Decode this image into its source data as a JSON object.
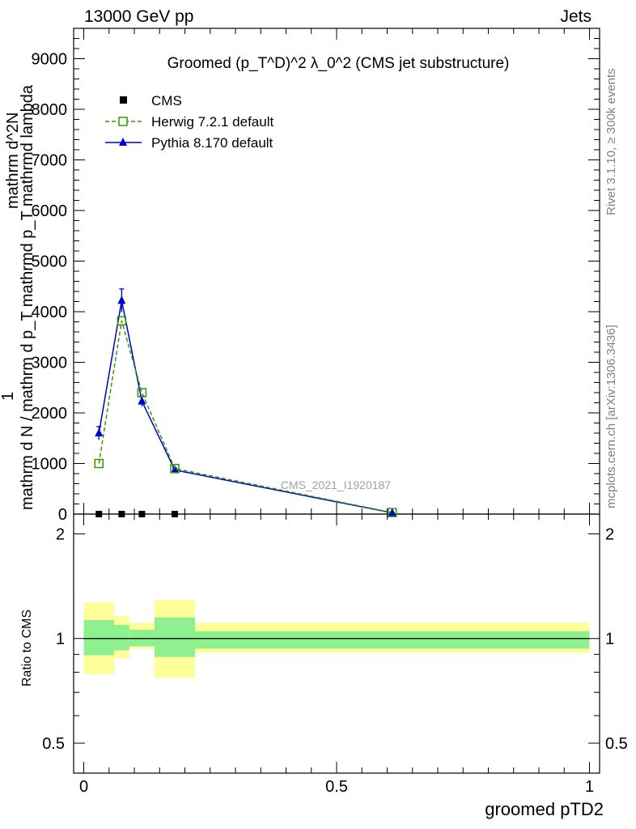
{
  "header": {
    "left": "13000 GeV pp",
    "right": "Jets"
  },
  "side_text": {
    "rivet": "Rivet 3.1.10, ≥ 300k events",
    "mcplots": "mcplots.cern.ch [arXiv:1306.3436]"
  },
  "watermark": "CMS_2021_I1920187",
  "xlabel": "groomed pTD2",
  "colors": {
    "herwig": "#339900",
    "pythia": "#0000cc",
    "band_inner": "#8ff08f",
    "band_outer": "#ffff99",
    "side_text": "#808080"
  },
  "chart_data": [
    {
      "type": "line",
      "title": "Groomed (p_T^D)^2 λ_0^2 (CMS jet substructure)",
      "ylabel_numerator": "1",
      "ylabel_denominator": "mathrm d N / mathrm d p_T mathrmd p_T mathrmd lambda",
      "ylabel_numerator_2": "mathrm d^2N",
      "xlim": [
        -0.02,
        1.02
      ],
      "ylim": [
        0,
        9600
      ],
      "yticks": [
        0,
        1000,
        2000,
        3000,
        4000,
        5000,
        6000,
        7000,
        8000,
        9000
      ],
      "legend_position": "top-left",
      "legend": [
        "CMS",
        "Herwig 7.2.1 default",
        "Pythia 8.170 default"
      ],
      "series": [
        {
          "name": "CMS",
          "marker": "square",
          "x": [
            0.03,
            0.075,
            0.115,
            0.18
          ],
          "y": [
            0,
            0,
            0,
            0
          ]
        },
        {
          "name": "Herwig 7.2.1 default",
          "marker": "open-square",
          "line": "dashed",
          "x": [
            0.03,
            0.075,
            0.115,
            0.18,
            0.61
          ],
          "y": [
            1000,
            3820,
            2400,
            900,
            30
          ]
        },
        {
          "name": "Pythia 8.170 default",
          "marker": "triangle",
          "line": "solid",
          "x": [
            0.03,
            0.075,
            0.115,
            0.18,
            0.61
          ],
          "y": [
            1600,
            4220,
            2230,
            870,
            25
          ],
          "yerr": [
            130,
            230,
            100,
            40,
            5
          ]
        }
      ]
    },
    {
      "type": "area",
      "ylabel": "Ratio to CMS",
      "xlim": [
        -0.02,
        1.02
      ],
      "ylim": [
        0.41,
        2.28
      ],
      "yticks": [
        0.5,
        1,
        2
      ],
      "ytick_labels": [
        "0.5",
        "1",
        "2"
      ],
      "xticks": [
        0,
        0.5,
        1
      ],
      "xtick_labels": [
        "0",
        "0.5",
        "1"
      ],
      "bins": [
        {
          "x0": 0.0,
          "x1": 0.06,
          "inner": [
            0.895,
            1.13
          ],
          "outer": [
            0.79,
            1.27
          ]
        },
        {
          "x0": 0.06,
          "x1": 0.09,
          "inner": [
            0.925,
            1.095
          ],
          "outer": [
            0.875,
            1.16
          ]
        },
        {
          "x0": 0.09,
          "x1": 0.14,
          "inner": [
            0.95,
            1.06
          ],
          "outer": [
            0.935,
            1.11
          ]
        },
        {
          "x0": 0.14,
          "x1": 0.22,
          "inner": [
            0.885,
            1.15
          ],
          "outer": [
            0.77,
            1.29
          ]
        },
        {
          "x0": 0.22,
          "x1": 1.0,
          "inner": [
            0.935,
            1.05
          ],
          "outer": [
            0.91,
            1.11
          ]
        }
      ],
      "reference": 1
    }
  ]
}
